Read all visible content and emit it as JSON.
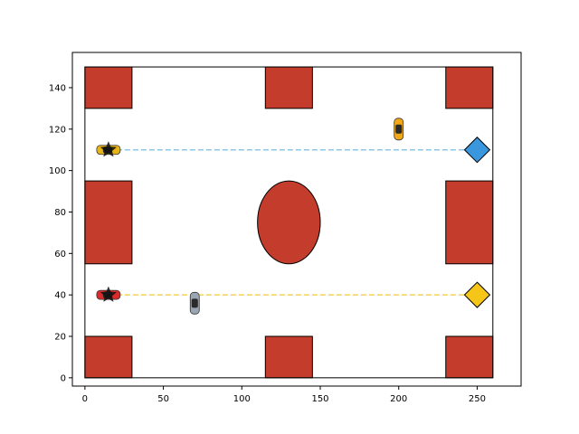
{
  "chart_data": {
    "type": "scatter",
    "title": "",
    "xlabel": "",
    "ylabel": "",
    "xlim": [
      -8,
      278
    ],
    "ylim": [
      -4,
      157
    ],
    "grid": false,
    "x_ticks": [
      "0",
      "50",
      "100",
      "150",
      "200",
      "250"
    ],
    "x_tick_values": [
      0,
      50,
      100,
      150,
      200,
      250
    ],
    "y_ticks": [
      "0",
      "20",
      "40",
      "60",
      "80",
      "100",
      "120",
      "140"
    ],
    "y_tick_values": [
      0,
      20,
      40,
      60,
      80,
      100,
      120,
      140
    ],
    "arena": {
      "x": [
        0,
        260
      ],
      "y": [
        0,
        150
      ]
    },
    "obstacle_color": "#c43c2c",
    "obstacles": [
      {
        "x": 0,
        "y": 130,
        "width": 30,
        "height": 20
      },
      {
        "x": 115,
        "y": 130,
        "width": 30,
        "height": 20
      },
      {
        "x": 230,
        "y": 130,
        "width": 30,
        "height": 20
      },
      {
        "x": 0,
        "y": 55,
        "width": 30,
        "height": 40
      },
      {
        "x": 230,
        "y": 55,
        "width": 30,
        "height": 40
      },
      {
        "x": 0,
        "y": 0,
        "width": 30,
        "height": 20
      },
      {
        "x": 115,
        "y": 0,
        "width": 30,
        "height": 20
      },
      {
        "x": 230,
        "y": 0,
        "width": 30,
        "height": 20
      }
    ],
    "ellipse_obstacle": {
      "cx": 130,
      "cy": 75,
      "rx": 20,
      "ry": 20
    },
    "paths": [
      {
        "from": [
          15,
          110
        ],
        "to": [
          250,
          110
        ],
        "color": "#8ec7e8"
      },
      {
        "from": [
          15,
          40
        ],
        "to": [
          250,
          40
        ],
        "color": "#f2d35a"
      }
    ],
    "goals": [
      {
        "x": 250,
        "y": 110,
        "color": "#3a96dd"
      },
      {
        "x": 250,
        "y": 40,
        "color": "#f5c518"
      }
    ],
    "agents": [
      {
        "x": 15,
        "y": 110,
        "orientation": "horizontal",
        "color": "#e8b417"
      },
      {
        "x": 15,
        "y": 40,
        "orientation": "horizontal",
        "color": "#d92b2b"
      },
      {
        "x": 200,
        "y": 120,
        "orientation": "vertical",
        "color": "#f0a818"
      },
      {
        "x": 70,
        "y": 36,
        "orientation": "vertical",
        "color": "#9aa6b4"
      }
    ],
    "start_markers": [
      {
        "x": 15,
        "y": 110
      },
      {
        "x": 15,
        "y": 40
      }
    ]
  }
}
